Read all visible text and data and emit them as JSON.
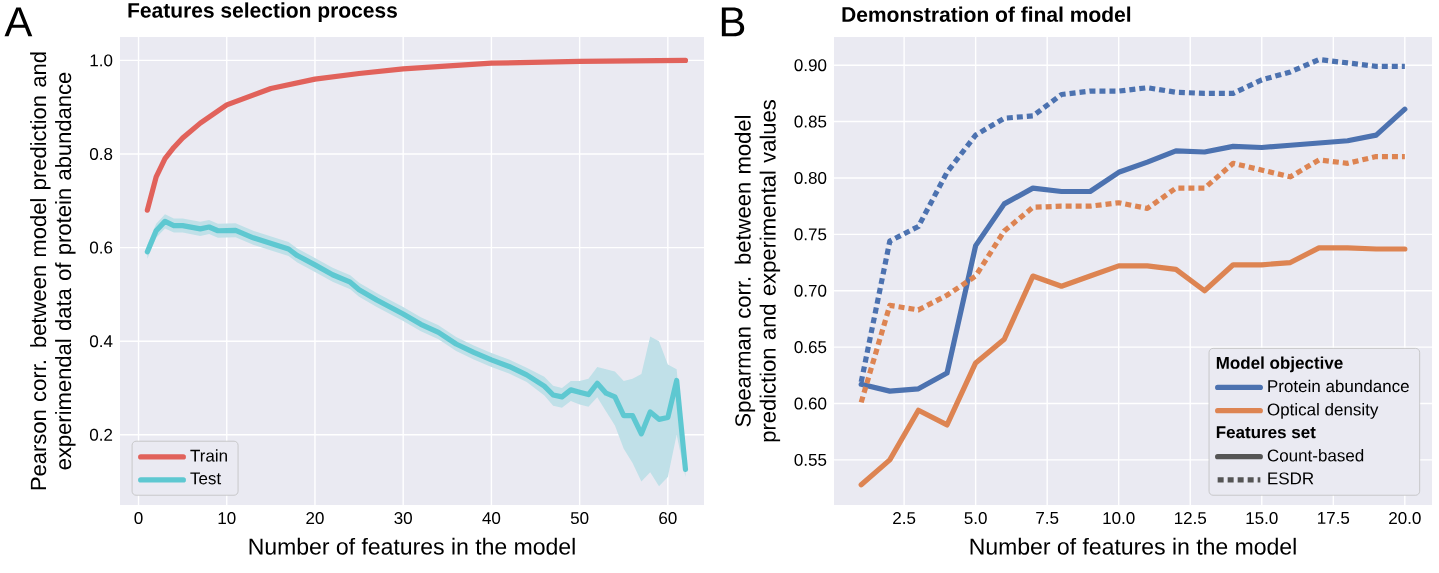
{
  "chart_data": [
    {
      "type": "line",
      "title": "Features selection process",
      "xlabel": "Number of features in the model",
      "ylabel": "Pearson corr. between model prediction and experimendal data of protein abundance",
      "annotations": [
        "A"
      ],
      "series": [
        {
          "name": "Train",
          "color": "#e1625b",
          "x": [
            1,
            2,
            3,
            4,
            5,
            7,
            10,
            15,
            20,
            25,
            30,
            40,
            50,
            62
          ],
          "values": [
            0.68,
            0.751,
            0.79,
            0.814,
            0.834,
            0.866,
            0.905,
            0.94,
            0.96,
            0.972,
            0.982,
            0.994,
            0.998,
            1.0
          ]
        },
        {
          "name": "Test",
          "color": "#5ec8d1",
          "x": [
            1,
            2,
            3,
            4,
            5,
            7,
            8,
            9,
            11,
            13,
            15,
            17,
            18,
            20,
            22,
            24,
            25,
            27,
            30,
            32,
            34,
            36,
            38,
            40,
            42,
            44,
            46,
            47,
            48,
            49,
            50,
            51,
            52,
            53,
            54,
            55,
            56,
            57,
            58,
            59,
            60,
            61,
            62
          ],
          "values": [
            0.591,
            0.636,
            0.656,
            0.647,
            0.647,
            0.64,
            0.644,
            0.636,
            0.637,
            0.621,
            0.609,
            0.597,
            0.583,
            0.563,
            0.542,
            0.526,
            0.51,
            0.488,
            0.458,
            0.436,
            0.419,
            0.394,
            0.376,
            0.36,
            0.346,
            0.328,
            0.304,
            0.285,
            0.281,
            0.296,
            0.291,
            0.286,
            0.31,
            0.289,
            0.281,
            0.241,
            0.241,
            0.202,
            0.249,
            0.233,
            0.237,
            0.316,
            0.126
          ],
          "lower": [
            0.576,
            0.621,
            0.641,
            0.632,
            0.632,
            0.625,
            0.629,
            0.621,
            0.622,
            0.606,
            0.594,
            0.582,
            0.568,
            0.548,
            0.527,
            0.511,
            0.495,
            0.473,
            0.443,
            0.421,
            0.404,
            0.379,
            0.361,
            0.345,
            0.331,
            0.313,
            0.284,
            0.262,
            0.258,
            0.272,
            0.265,
            0.26,
            0.28,
            0.25,
            0.22,
            0.17,
            0.14,
            0.1,
            0.12,
            0.09,
            0.11,
            0.2,
            0.11
          ],
          "upper": [
            0.606,
            0.651,
            0.671,
            0.662,
            0.662,
            0.655,
            0.659,
            0.651,
            0.652,
            0.636,
            0.624,
            0.612,
            0.598,
            0.578,
            0.557,
            0.541,
            0.525,
            0.503,
            0.473,
            0.451,
            0.434,
            0.409,
            0.391,
            0.375,
            0.361,
            0.343,
            0.324,
            0.305,
            0.3,
            0.315,
            0.315,
            0.32,
            0.345,
            0.34,
            0.335,
            0.315,
            0.32,
            0.33,
            0.41,
            0.4,
            0.35,
            0.34,
            0.14
          ]
        }
      ],
      "xlim": [
        -2.1,
        64.1
      ],
      "ylim": [
        0.05,
        1.05
      ],
      "xticks": [
        0,
        10,
        20,
        30,
        40,
        50,
        60
      ],
      "yticks": [
        0.2,
        0.4,
        0.6,
        0.8,
        {
          "value": 1.0,
          "label": "1.0"
        }
      ],
      "grid": true,
      "legend": "bottom left",
      "line_style": "solid"
    },
    {
      "type": "line",
      "title": "Demonstration of final model",
      "xlabel": "Number of features in the model",
      "ylabel": "Spearman corr. between model prediction and experimental values",
      "legend_title": "Model objective",
      "annotations": [
        "B",
        "Features set",
        "Count-based",
        "ESDR"
      ],
      "series": [
        {
          "name": "Protein abundance",
          "color": "#4c72b0",
          "x": [
            1,
            2,
            3,
            4,
            5,
            6,
            7,
            8,
            9,
            10,
            11,
            12,
            13,
            14,
            15,
            16,
            17,
            18,
            19,
            20
          ],
          "values": [
            0.617,
            0.611,
            0.613,
            0.627,
            0.74,
            0.777,
            0.791,
            0.788,
            0.788,
            0.805,
            0.814,
            0.824,
            0.823,
            0.828,
            0.827,
            0.829,
            0.831,
            0.833,
            0.838,
            0.861
          ]
        },
        {
          "name": "Optical density",
          "color": "#dd8452",
          "x": [
            1,
            2,
            3,
            4,
            5,
            6,
            7,
            8,
            9,
            10,
            11,
            12,
            13,
            14,
            15,
            16,
            17,
            18,
            19,
            20
          ],
          "values": [
            0.528,
            0.55,
            0.594,
            0.581,
            0.636,
            0.657,
            0.713,
            0.704,
            0.713,
            0.722,
            0.722,
            0.719,
            0.7,
            0.723,
            0.723,
            0.725,
            0.738,
            0.738,
            0.737,
            0.737
          ]
        },
        {
          "color": "#4c72b0",
          "line_style": "dotted",
          "x": [
            1,
            2,
            3,
            4,
            5,
            6,
            7,
            8,
            9,
            10,
            11,
            12,
            13,
            14,
            15,
            16,
            17,
            18,
            19,
            20
          ],
          "values": [
            0.619,
            0.744,
            0.757,
            0.805,
            0.838,
            0.853,
            0.855,
            0.874,
            0.877,
            0.877,
            0.88,
            0.876,
            0.875,
            0.875,
            0.887,
            0.894,
            0.905,
            0.902,
            0.899,
            0.899
          ]
        },
        {
          "color": "#dd8452",
          "line_style": "dotted",
          "x": [
            1,
            2,
            3,
            4,
            5,
            6,
            7,
            8,
            9,
            10,
            11,
            12,
            13,
            14,
            15,
            16,
            17,
            18,
            19,
            20
          ],
          "values": [
            0.601,
            0.687,
            0.683,
            0.696,
            0.713,
            0.753,
            0.774,
            0.775,
            0.775,
            0.778,
            0.773,
            0.791,
            0.791,
            0.813,
            0.807,
            0.801,
            0.816,
            0.813,
            0.819,
            0.819
          ]
        }
      ],
      "xlim": [
        0.05,
        20.95
      ],
      "ylim": [
        0.51,
        0.925
      ],
      "xticks": [
        2.5,
        {
          "value": 5.0,
          "label": "5.0"
        },
        7.5,
        {
          "value": 10.0,
          "label": "10.0"
        },
        12.5,
        {
          "value": 15.0,
          "label": "15.0"
        },
        17.5,
        {
          "value": 20.0,
          "label": "20.0"
        }
      ],
      "yticks": [
        0.55,
        {
          "value": 0.6,
          "label": "0.60"
        },
        0.65,
        {
          "value": 0.7,
          "label": "0.70"
        },
        0.75,
        {
          "value": 0.8,
          "label": "0.80"
        },
        0.85,
        {
          "value": 0.9,
          "label": "0.90"
        }
      ],
      "grid": true,
      "legend": "bottom right",
      "line_style": "solid"
    }
  ]
}
